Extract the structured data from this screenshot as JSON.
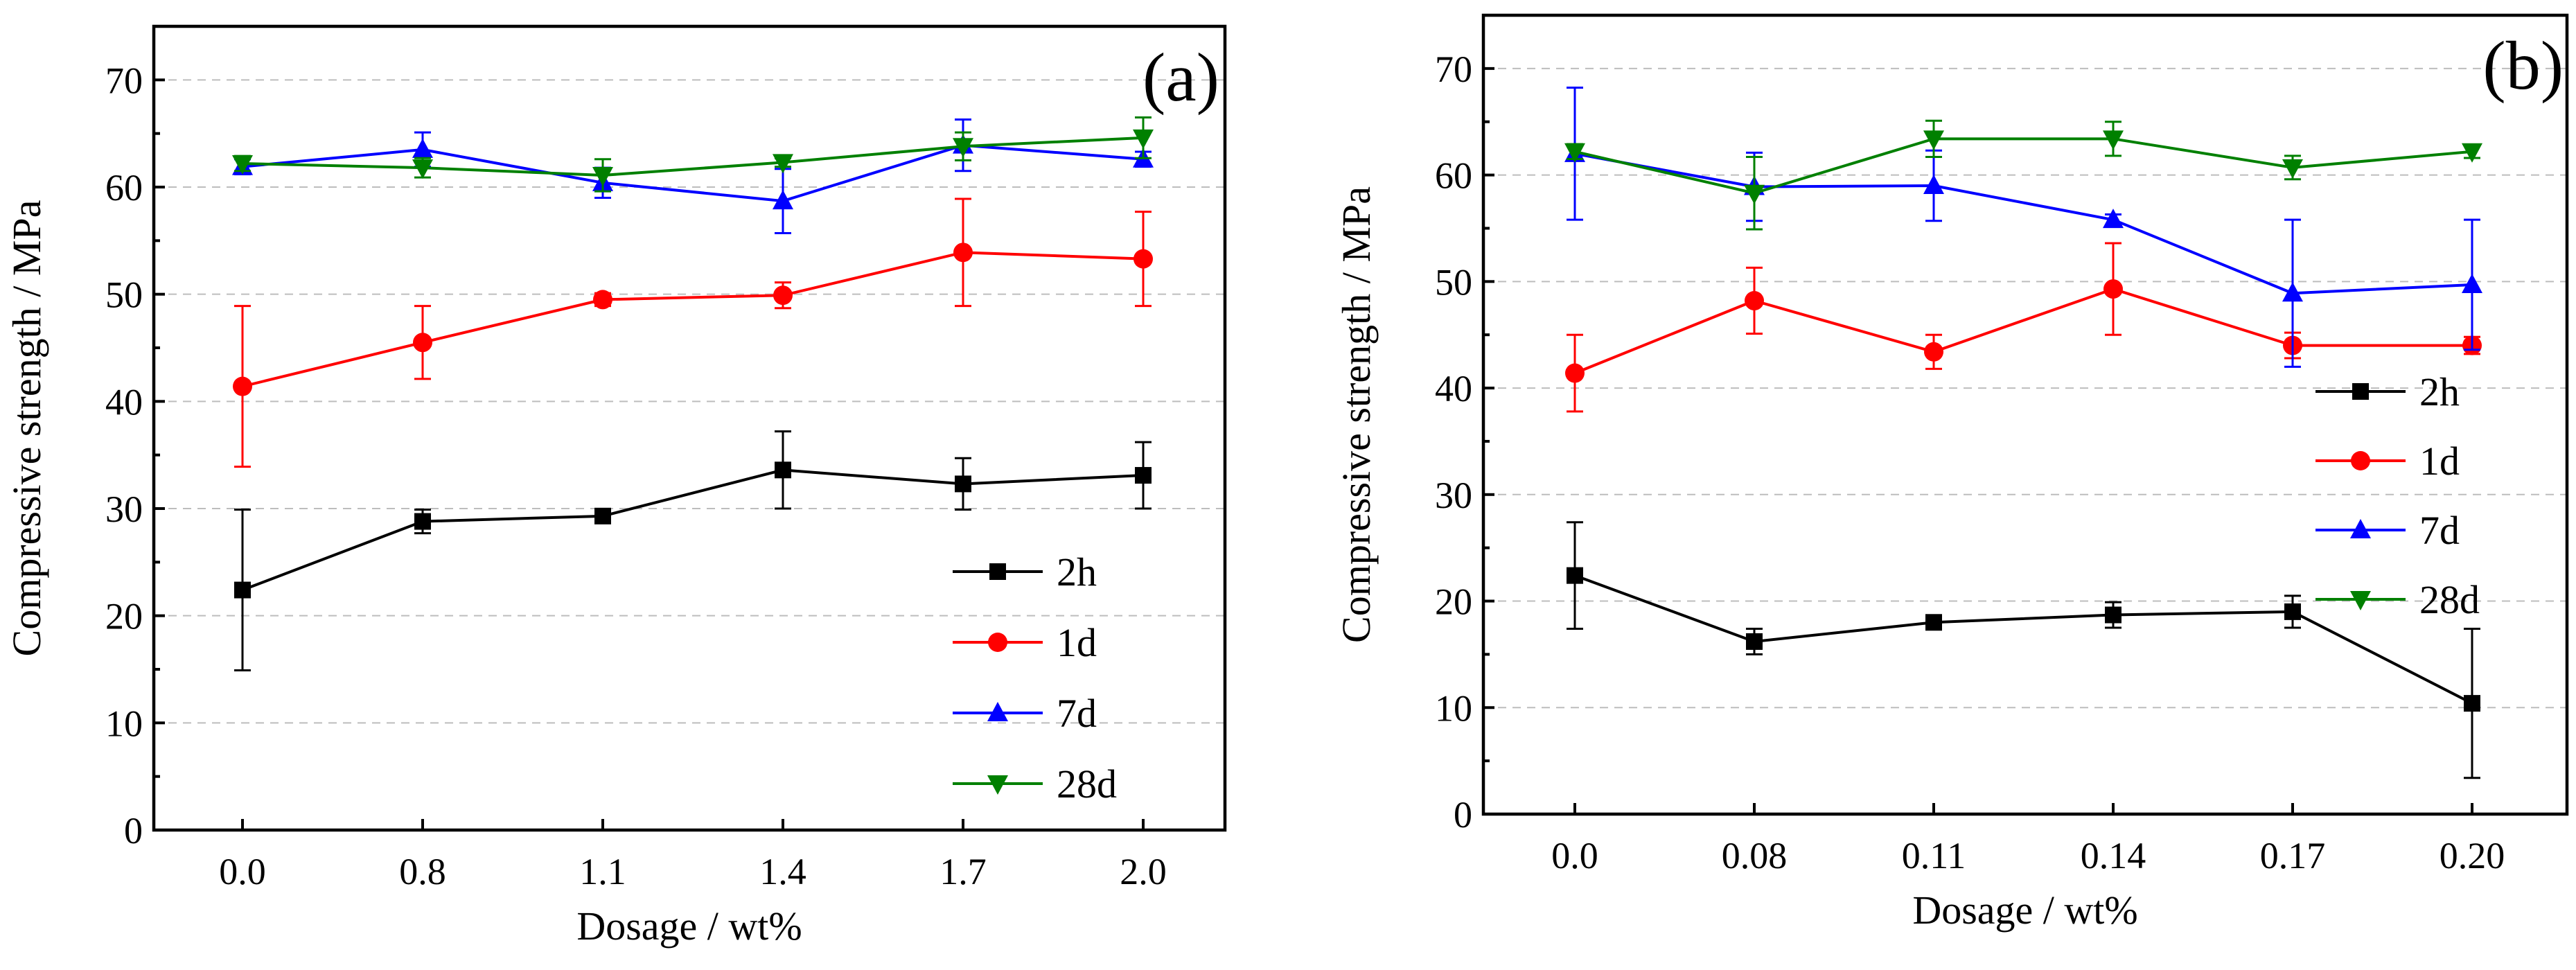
{
  "chart_data": [
    {
      "panel": "(a)",
      "type": "line",
      "xlabel": "Dosage / wt%",
      "ylabel": "Compressive strength / MPa",
      "ylim": [
        0,
        75
      ],
      "yticks": [
        0,
        10,
        20,
        30,
        40,
        50,
        60,
        70
      ],
      "ytick_labels": [
        "0",
        "10",
        "20",
        "30",
        "40",
        "50",
        "60",
        "70"
      ],
      "categories": [
        "0.0",
        "0.8",
        "1.1",
        "1.4",
        "1.7",
        "2.0"
      ],
      "legend_position": "bottom-right",
      "series": [
        {
          "name": "2h",
          "color": "#000000",
          "marker": "square",
          "values": [
            22.4,
            28.8,
            29.3,
            33.6,
            32.3,
            33.1
          ],
          "errors": [
            7.5,
            1.1,
            0.5,
            3.6,
            2.4,
            3.1
          ]
        },
        {
          "name": "1d",
          "color": "#ff0000",
          "marker": "circle",
          "values": [
            41.4,
            45.5,
            49.5,
            49.9,
            53.9,
            53.3
          ],
          "errors": [
            7.5,
            3.4,
            0.6,
            1.2,
            5.0,
            4.4
          ]
        },
        {
          "name": "7d",
          "color": "#0000ff",
          "marker": "triangle-up",
          "values": [
            61.9,
            63.5,
            60.4,
            58.7,
            63.9,
            62.6
          ],
          "errors": [
            0.7,
            1.6,
            1.4,
            3.0,
            2.4,
            0.7
          ]
        },
        {
          "name": "28d",
          "color": "#008000",
          "marker": "triangle-down",
          "values": [
            62.2,
            61.8,
            61.1,
            62.3,
            63.8,
            64.6
          ],
          "errors": [
            0.7,
            0.9,
            1.5,
            0.4,
            1.3,
            1.9
          ]
        }
      ]
    },
    {
      "panel": "(b)",
      "type": "line",
      "xlabel": "Dosage / wt%",
      "ylabel": "Compressive strength / MPa",
      "ylim": [
        0,
        75
      ],
      "yticks": [
        0,
        10,
        20,
        30,
        40,
        50,
        60,
        70
      ],
      "ytick_labels": [
        "0",
        "10",
        "20",
        "30",
        "40",
        "50",
        "60",
        "70"
      ],
      "categories": [
        "0.0",
        "0.08",
        "0.11",
        "0.14",
        "0.17",
        "0.20"
      ],
      "legend_position": "center-right",
      "series": [
        {
          "name": "2h",
          "color": "#000000",
          "marker": "square",
          "values": [
            22.4,
            16.2,
            18.0,
            18.7,
            19.0,
            10.4
          ],
          "errors": [
            5.0,
            1.2,
            0.6,
            1.2,
            1.5,
            7.0
          ]
        },
        {
          "name": "1d",
          "color": "#ff0000",
          "marker": "circle",
          "values": [
            41.4,
            48.2,
            43.4,
            49.3,
            44.0,
            44.0
          ],
          "errors": [
            3.6,
            3.1,
            1.6,
            4.3,
            1.2,
            0.8
          ]
        },
        {
          "name": "7d",
          "color": "#0000ff",
          "marker": "triangle-up",
          "values": [
            62.0,
            58.9,
            59.0,
            55.8,
            48.9,
            49.7
          ],
          "errors": [
            6.2,
            3.2,
            3.3,
            0.5,
            6.9,
            6.1
          ]
        },
        {
          "name": "28d",
          "color": "#008000",
          "marker": "triangle-down",
          "values": [
            62.2,
            58.3,
            63.4,
            63.4,
            60.7,
            62.2
          ],
          "errors": [
            0.7,
            3.4,
            1.7,
            1.6,
            1.1,
            0.6
          ]
        }
      ]
    }
  ]
}
